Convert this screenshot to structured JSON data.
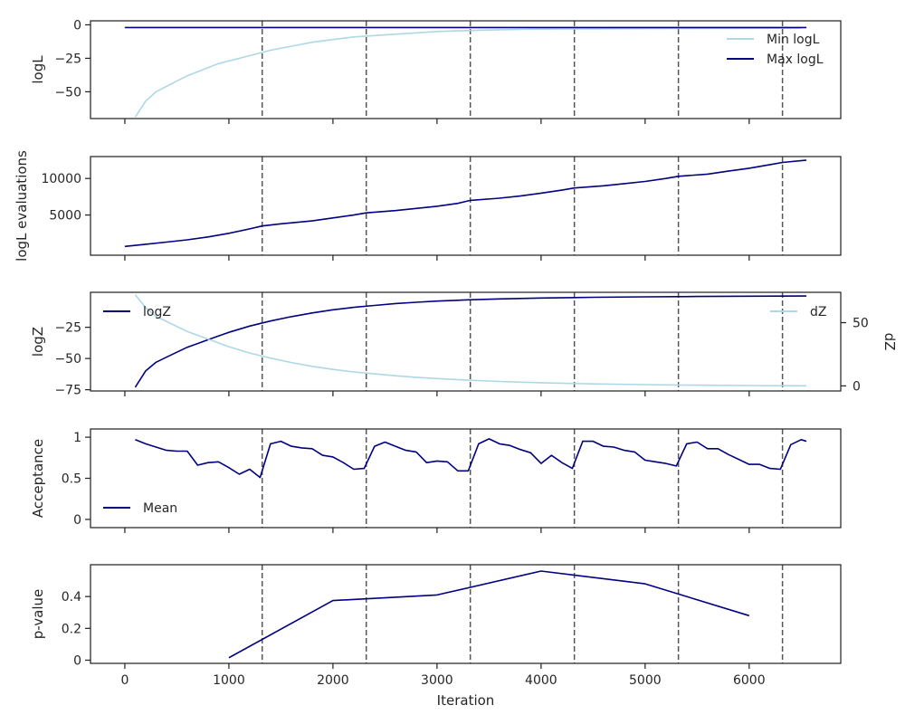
{
  "chart_data": [
    {
      "type": "line",
      "ylabel": "logL",
      "xlim": [
        -330,
        6880
      ],
      "ylim": [
        -70,
        3
      ],
      "yticks": [
        0,
        -25,
        -50
      ],
      "legend": "top-right",
      "series": [
        {
          "name": "Min logL",
          "color": "#add8e6",
          "x": [
            100,
            200,
            300,
            400,
            500,
            600,
            700,
            800,
            900,
            1000,
            1200,
            1400,
            1600,
            1800,
            2000,
            2200,
            2400,
            2600,
            2800,
            3000,
            3200,
            3400,
            3600,
            3800,
            4000,
            4500,
            5000,
            5500,
            6000,
            6500
          ],
          "y": [
            -69,
            -57,
            -50,
            -46,
            -42,
            -38,
            -35,
            -32,
            -29,
            -27,
            -23,
            -19,
            -16,
            -13,
            -11,
            -9,
            -8,
            -7,
            -6,
            -5,
            -4.5,
            -4,
            -3.7,
            -3.4,
            -3.2,
            -3,
            -2.8,
            -2.7,
            -2.6,
            -2.5
          ]
        },
        {
          "name": "Max logL",
          "color": "#000080",
          "x": [
            0,
            6550
          ],
          "y": [
            -2,
            -2
          ]
        }
      ]
    },
    {
      "type": "line",
      "ylabel": "logL evaluations",
      "xlim": [
        -330,
        6880
      ],
      "ylim": [
        -500,
        13000
      ],
      "yticks": [
        5000,
        10000
      ],
      "series": [
        {
          "name": "",
          "color": "#000080",
          "x": [
            0,
            200,
            400,
            600,
            800,
            1000,
            1200,
            1320,
            1500,
            1800,
            2000,
            2200,
            2320,
            2600,
            2800,
            3000,
            3200,
            3320,
            3600,
            3800,
            4000,
            4200,
            4320,
            4600,
            4800,
            5000,
            5200,
            5320,
            5600,
            5800,
            6000,
            6200,
            6320,
            6550
          ],
          "y": [
            700,
            1000,
            1300,
            1600,
            2000,
            2500,
            3100,
            3500,
            3800,
            4200,
            4600,
            5000,
            5300,
            5600,
            5900,
            6200,
            6600,
            7000,
            7300,
            7600,
            8000,
            8400,
            8700,
            9000,
            9300,
            9600,
            10000,
            10300,
            10600,
            11000,
            11400,
            11900,
            12200,
            12500
          ]
        }
      ]
    },
    {
      "type": "line",
      "ylabel": "logZ",
      "ylabel_right": "dZ",
      "xlim": [
        -330,
        6880
      ],
      "ylim": [
        -76,
        3
      ],
      "yticks": [
        -25,
        -50,
        -75
      ],
      "ylim_right": [
        -4,
        74
      ],
      "yticks_right": [
        0,
        50
      ],
      "legend": "top-left / top-right",
      "series": [
        {
          "name": "logZ",
          "color": "#000080",
          "axis": "left",
          "x": [
            100,
            200,
            300,
            400,
            500,
            600,
            700,
            800,
            900,
            1000,
            1200,
            1400,
            1600,
            1800,
            2000,
            2200,
            2400,
            2600,
            2800,
            3000,
            3300,
            3600,
            4000,
            4500,
            5000,
            5500,
            6000,
            6550
          ],
          "y": [
            -73,
            -60,
            -53,
            -49,
            -45,
            -41,
            -38,
            -35,
            -32,
            -29,
            -24,
            -20,
            -16.5,
            -13.5,
            -11,
            -9,
            -7.5,
            -6,
            -5,
            -4,
            -3,
            -2.3,
            -1.6,
            -1,
            -0.6,
            -0.3,
            -0.1,
            0
          ]
        },
        {
          "name": "dZ",
          "color": "#add8e6",
          "axis": "right",
          "x": [
            100,
            200,
            300,
            400,
            500,
            600,
            700,
            800,
            900,
            1000,
            1200,
            1400,
            1600,
            1800,
            2000,
            2200,
            2400,
            2600,
            2800,
            3000,
            3300,
            3600,
            4000,
            4500,
            5000,
            5500,
            6000,
            6550
          ],
          "y": [
            72,
            62,
            55,
            51,
            47,
            43,
            40,
            37,
            34,
            31,
            26,
            22,
            18.5,
            15.5,
            13,
            11,
            9.5,
            8,
            6.8,
            5.8,
            4.5,
            3.5,
            2.5,
            1.6,
            1,
            0.6,
            0.3,
            0.1
          ]
        }
      ]
    },
    {
      "type": "line",
      "ylabel": "Acceptance",
      "xlim": [
        -330,
        6880
      ],
      "ylim": [
        -0.1,
        1.1
      ],
      "yticks": [
        0.0,
        0.5,
        1.0
      ],
      "legend": "bottom-left",
      "series": [
        {
          "name": "Mean",
          "color": "#000080",
          "x": [
            100,
            200,
            300,
            400,
            500,
            600,
            700,
            800,
            900,
            1000,
            1100,
            1200,
            1300,
            1400,
            1500,
            1600,
            1700,
            1800,
            1900,
            2000,
            2100,
            2200,
            2300,
            2400,
            2500,
            2600,
            2700,
            2800,
            2900,
            3000,
            3100,
            3200,
            3300,
            3400,
            3500,
            3600,
            3700,
            3800,
            3900,
            4000,
            4100,
            4200,
            4300,
            4400,
            4500,
            4600,
            4700,
            4800,
            4900,
            5000,
            5100,
            5200,
            5300,
            5400,
            5500,
            5600,
            5700,
            5800,
            5900,
            6000,
            6100,
            6200,
            6300,
            6400,
            6500,
            6550
          ],
          "y": [
            0.97,
            0.92,
            0.88,
            0.84,
            0.83,
            0.83,
            0.66,
            0.69,
            0.7,
            0.63,
            0.55,
            0.61,
            0.51,
            0.92,
            0.95,
            0.89,
            0.87,
            0.86,
            0.78,
            0.76,
            0.69,
            0.61,
            0.62,
            0.89,
            0.94,
            0.89,
            0.84,
            0.82,
            0.69,
            0.71,
            0.7,
            0.59,
            0.59,
            0.92,
            0.98,
            0.92,
            0.9,
            0.85,
            0.81,
            0.68,
            0.78,
            0.69,
            0.62,
            0.95,
            0.95,
            0.89,
            0.88,
            0.84,
            0.82,
            0.72,
            0.7,
            0.68,
            0.65,
            0.92,
            0.94,
            0.86,
            0.86,
            0.79,
            0.73,
            0.67,
            0.67,
            0.62,
            0.61,
            0.91,
            0.97,
            0.95
          ]
        }
      ]
    },
    {
      "type": "line",
      "ylabel": "p-value",
      "xlabel": "Iteration",
      "xlim": [
        -330,
        6880
      ],
      "ylim": [
        -0.02,
        0.6
      ],
      "yticks": [
        0.0,
        0.2,
        0.4
      ],
      "xticks": [
        0,
        1000,
        2000,
        3000,
        4000,
        5000,
        6000
      ],
      "series": [
        {
          "name": "",
          "color": "#000080",
          "x": [
            1000,
            2000,
            3000,
            4000,
            5000,
            6000
          ],
          "y": [
            0.015,
            0.375,
            0.41,
            0.56,
            0.48,
            0.28
          ]
        }
      ]
    }
  ],
  "vlines": [
    1320,
    2320,
    3320,
    4320,
    5320,
    6320
  ]
}
